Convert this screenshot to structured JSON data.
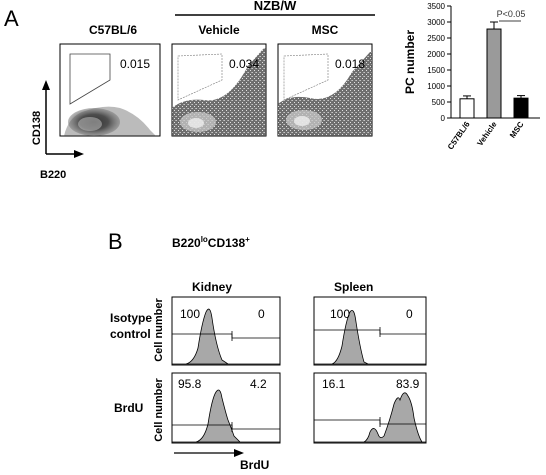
{
  "panel_a": {
    "label": "A",
    "group_header": "NZB/W",
    "flow_axis_y": "CD138",
    "flow_axis_x": "B220",
    "plots": [
      {
        "title": "C57BL/6",
        "gate_value": "0.015"
      },
      {
        "title": "Vehicle",
        "gate_value": "0.034"
      },
      {
        "title": "MSC",
        "gate_value": "0.018"
      }
    ]
  },
  "chart_data": {
    "type": "bar",
    "categories": [
      "C57BL/6",
      "Vehicle",
      "MSC"
    ],
    "values": [
      600,
      2780,
      620
    ],
    "errors": [
      90,
      220,
      80
    ],
    "bar_colors": [
      "#ffffff",
      "#9a9a9a",
      "#000000"
    ],
    "ylabel": "PC number",
    "ylim": [
      0,
      3500
    ],
    "yticks": [
      0,
      500,
      1000,
      1500,
      2000,
      2500,
      3000,
      3500
    ],
    "annotation": "P<0.05",
    "grid": false
  },
  "panel_b": {
    "label": "B",
    "population_title": "B220",
    "population_sup1": "lo",
    "population_mid": "CD138",
    "population_sup2": "+",
    "columns": [
      "Kidney",
      "Spleen"
    ],
    "x_axis_label": "BrdU",
    "rows": [
      {
        "label_line1": "Isotype",
        "label_line2": "control",
        "y_label": "Cell number",
        "values": [
          [
            "100",
            "0"
          ],
          [
            "100",
            "0"
          ]
        ]
      },
      {
        "label_line1": "BrdU",
        "label_line2": "",
        "y_label": "Cell number",
        "values": [
          [
            "95.8",
            "4.2"
          ],
          [
            "16.1",
            "83.9"
          ]
        ]
      }
    ]
  }
}
